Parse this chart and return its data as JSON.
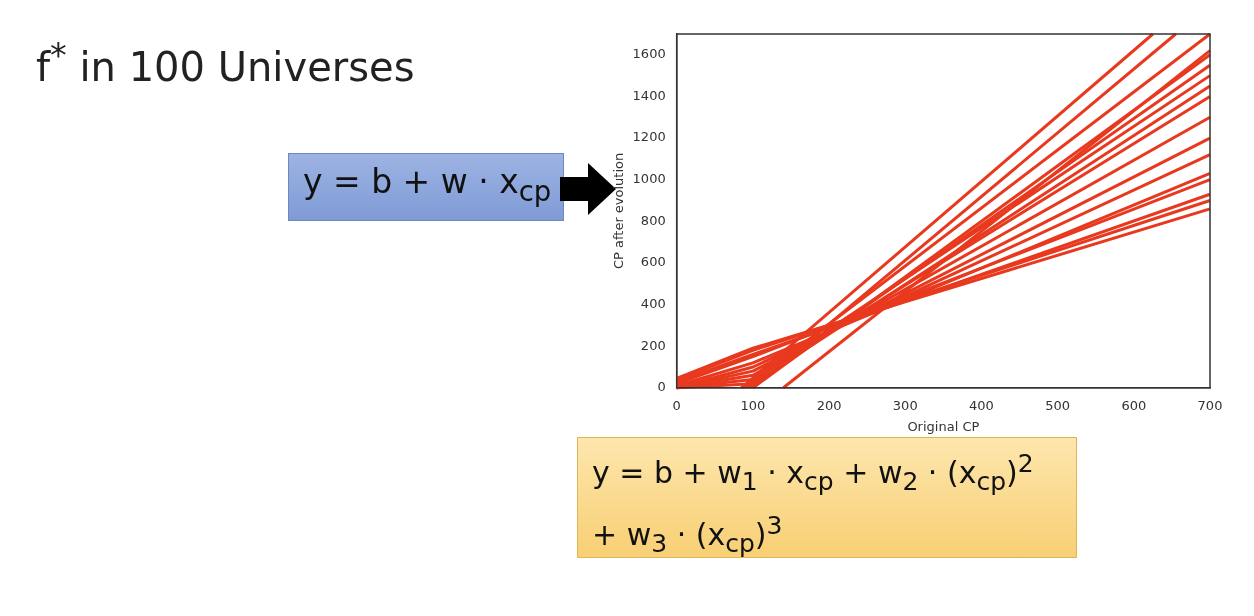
{
  "chart_data": {
    "type": "line",
    "title": "f$^{*}$ in 100 Universes",
    "xlabel": "Original CP",
    "ylabel": "CP after evolution",
    "annotations": [
      "y = b + w · x$_{cp}$",
      "y = b + w$_{1}$ · x$_{cp}$ + w$_{2}$ · (x$_{cp}$)$^{2}$",
      "+ w$_{3}$ · (x$_{cp}$)$^{3}$"
    ],
    "xlim": [
      0,
      700
    ],
    "ylim": [
      0,
      1700
    ],
    "xticks": [
      0,
      100,
      200,
      300,
      400,
      500,
      600,
      700
    ],
    "yticks": [
      0,
      200,
      400,
      600,
      800,
      1000,
      1200,
      1400,
      1600
    ],
    "grid": false,
    "legend": false,
    "marker": "none",
    "line_style": "solid",
    "series": [
      {
        "color": "#e8391f",
        "x": [
          0,
          100,
          700
        ],
        "values": [
          45,
          190,
          860
        ]
      },
      {
        "color": "#e8391f",
        "x": [
          0,
          100,
          700
        ],
        "values": [
          40,
          180,
          900
        ]
      },
      {
        "color": "#e8391f",
        "x": [
          0,
          100,
          700
        ],
        "values": [
          30,
          160,
          930
        ]
      },
      {
        "color": "#e8391f",
        "x": [
          0,
          100,
          700
        ],
        "values": [
          20,
          150,
          1000
        ]
      },
      {
        "color": "#e8391f",
        "x": [
          0,
          100,
          700
        ],
        "values": [
          10,
          120,
          1030
        ]
      },
      {
        "color": "#e8391f",
        "x": [
          0,
          100,
          700
        ],
        "values": [
          0,
          100,
          1120
        ]
      },
      {
        "color": "#e8391f",
        "x": [
          0,
          100,
          700
        ],
        "values": [
          0,
          80,
          1200
        ]
      },
      {
        "color": "#e8391f",
        "x": [
          0,
          100,
          700
        ],
        "values": [
          0,
          60,
          1300
        ]
      },
      {
        "color": "#e8391f",
        "x": [
          0,
          100,
          700
        ],
        "values": [
          0,
          40,
          1400
        ]
      },
      {
        "color": "#e8391f",
        "x": [
          0,
          100,
          700
        ],
        "values": [
          0,
          20,
          1450
        ]
      },
      {
        "color": "#e8391f",
        "x": [
          85,
          700
        ],
        "values": [
          0,
          1500
        ]
      },
      {
        "color": "#e8391f",
        "x": [
          95,
          700
        ],
        "values": [
          0,
          1550
        ]
      },
      {
        "color": "#e8391f",
        "x": [
          100,
          700
        ],
        "values": [
          0,
          1600
        ]
      },
      {
        "color": "#e8391f",
        "x": [
          90,
          700
        ],
        "values": [
          0,
          1700
        ]
      },
      {
        "color": "#e8391f",
        "x": [
          85,
          625
        ],
        "values": [
          0,
          1700
        ]
      },
      {
        "color": "#e8391f",
        "x": [
          100,
          655
        ],
        "values": [
          0,
          1700
        ]
      },
      {
        "color": "#e8391f",
        "x": [
          140,
          700
        ],
        "values": [
          0,
          1620
        ]
      }
    ]
  }
}
